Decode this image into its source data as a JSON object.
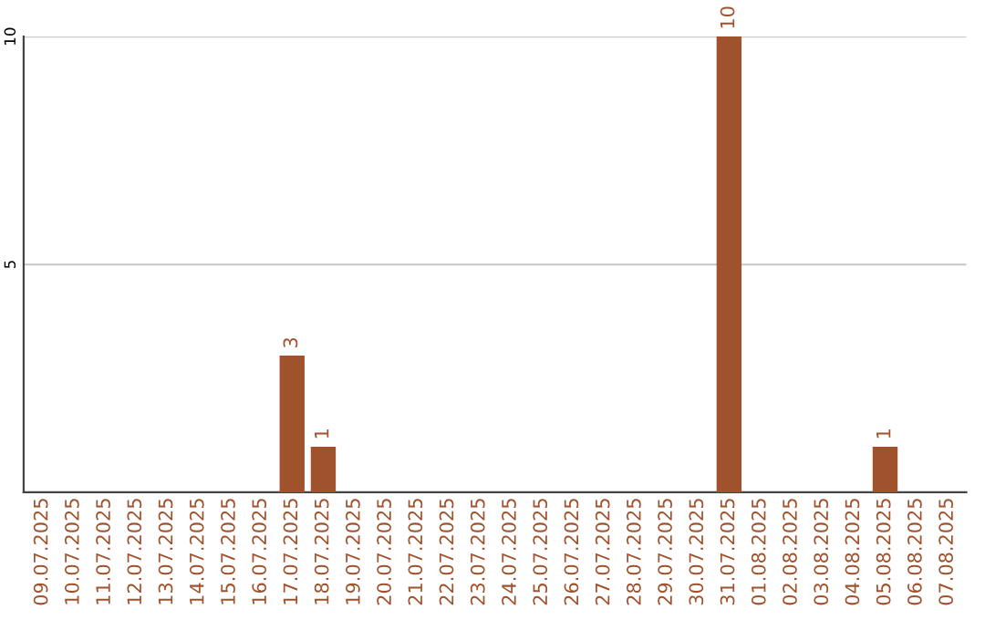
{
  "chart_data": {
    "type": "bar",
    "categories": [
      "09.07.2025",
      "10.07.2025",
      "11.07.2025",
      "12.07.2025",
      "13.07.2025",
      "14.07.2025",
      "15.07.2025",
      "16.07.2025",
      "17.07.2025",
      "18.07.2025",
      "19.07.2025",
      "20.07.2025",
      "21.07.2025",
      "22.07.2025",
      "23.07.2025",
      "24.07.2025",
      "25.07.2025",
      "26.07.2025",
      "27.07.2025",
      "28.07.2025",
      "29.07.2025",
      "30.07.2025",
      "31.07.2025",
      "01.08.2025",
      "02.08.2025",
      "03.08.2025",
      "04.08.2025",
      "05.08.2025",
      "06.08.2025",
      "07.08.2025"
    ],
    "values": [
      0,
      0,
      0,
      0,
      0,
      0,
      0,
      0,
      3,
      1,
      0,
      0,
      0,
      0,
      0,
      0,
      0,
      0,
      0,
      0,
      0,
      0,
      10,
      0,
      0,
      0,
      0,
      1,
      0,
      0
    ],
    "value_labels": [
      null,
      null,
      null,
      null,
      null,
      null,
      null,
      null,
      "3",
      "1",
      null,
      null,
      null,
      null,
      null,
      null,
      null,
      null,
      null,
      null,
      null,
      null,
      "10",
      null,
      null,
      null,
      null,
      "1",
      null,
      null
    ],
    "color": "#a0522d",
    "ylim": [
      0,
      10
    ],
    "yticks": [
      5,
      10
    ],
    "grid": "y"
  }
}
